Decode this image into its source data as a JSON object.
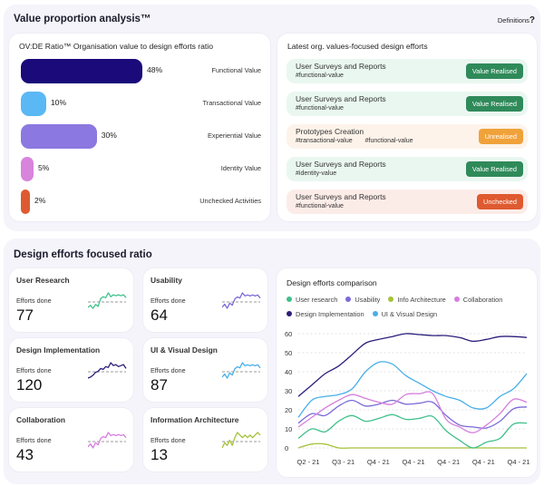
{
  "value_proportion": {
    "title": "Value proportion analysis™",
    "definitions_label": "Definitions",
    "definitions_icon": "?",
    "ovde": {
      "title": "OV:DE Ratio™  Organisation value to design efforts ratio",
      "items": [
        {
          "label": "Functional Value",
          "percent": 48,
          "percent_text": "48%",
          "color": "#1a0a7a"
        },
        {
          "label": "Transactional Value",
          "percent": 10,
          "percent_text": "10%",
          "color": "#5ab8f5"
        },
        {
          "label": "Experiential Value",
          "percent": 30,
          "percent_text": "30%",
          "color": "#8b78e0"
        },
        {
          "label": "Identity Value",
          "percent": 5,
          "percent_text": "5%",
          "color": "#d884dc"
        },
        {
          "label": "Unchecked Activities",
          "percent": 2,
          "percent_text": "2%",
          "color": "#df5a30"
        }
      ]
    },
    "latest": {
      "title": "Latest org. values-focused design efforts",
      "items": [
        {
          "title": "User Surveys and Reports",
          "tags": [
            "#functional-value"
          ],
          "status": "Value Realised",
          "status_type": "realised"
        },
        {
          "title": "User Surveys and Reports",
          "tags": [
            "#functional-value"
          ],
          "status": "Value Realised",
          "status_type": "realised"
        },
        {
          "title": "Prototypes Creation",
          "tags": [
            "#transactional-value",
            "#functional-value"
          ],
          "status": "Unrealised",
          "status_type": "unrealised"
        },
        {
          "title": "User Surveys and Reports",
          "tags": [
            "#identity-value"
          ],
          "status": "Value Realised",
          "status_type": "realised"
        },
        {
          "title": "User Surveys and Reports",
          "tags": [
            "#functional-value"
          ],
          "status": "Unchecked",
          "status_type": "unchecked"
        }
      ],
      "status_colors": {
        "realised": {
          "bg": "#eaf7f1",
          "badge": "#2f8a5a"
        },
        "unrealised": {
          "bg": "#fdf3ea",
          "badge": "#f0a23a"
        },
        "unchecked": {
          "bg": "#fcece8",
          "badge": "#df5a30"
        }
      }
    }
  },
  "design_efforts": {
    "title": "Design efforts focused ratio",
    "stats": [
      {
        "title": "User Research",
        "label": "Efforts done",
        "value": "77",
        "color": "#3fc08a",
        "trend": [
          3,
          5,
          2,
          6,
          4,
          12,
          14,
          13,
          18,
          14,
          16,
          15,
          16,
          15,
          16,
          13
        ]
      },
      {
        "title": "Usability",
        "label": "Efforts done",
        "value": "64",
        "color": "#7b6bd8",
        "trend": [
          3,
          6,
          2,
          7,
          5,
          11,
          13,
          12,
          17,
          14,
          15,
          14,
          15,
          14,
          15,
          12
        ]
      },
      {
        "title": "Design Implementation",
        "label": "Efforts done",
        "value": "120",
        "color": "#2a1f7a",
        "trend": [
          2,
          3,
          5,
          8,
          9,
          12,
          11,
          14,
          13,
          18,
          15,
          16,
          14,
          15,
          16,
          12
        ]
      },
      {
        "title": "UI & Visual Design",
        "label": "Efforts done",
        "value": "87",
        "color": "#4aaee8",
        "trend": [
          3,
          6,
          2,
          7,
          5,
          11,
          13,
          12,
          17,
          14,
          15,
          14,
          15,
          14,
          15,
          12
        ]
      },
      {
        "title": "Collaboration",
        "label": "Efforts done",
        "value": "43",
        "color": "#d57fdc",
        "trend": [
          3,
          6,
          2,
          7,
          5,
          11,
          13,
          12,
          17,
          14,
          15,
          14,
          15,
          14,
          15,
          12
        ]
      },
      {
        "title": "Information Architecture",
        "label": "Efforts done",
        "value": "13",
        "color": "#a5c23a",
        "trend": [
          6,
          8,
          7,
          9,
          7,
          10,
          12,
          11,
          10,
          11,
          10,
          11,
          10,
          11,
          12,
          11
        ]
      }
    ],
    "comparison": {
      "title": "Design efforts comparison",
      "chart_data": {
        "type": "line",
        "title": "Design efforts comparison",
        "x": [
          "Q2 - 21",
          "Q3 - 21",
          "Q4 - 21",
          "Q4 - 21",
          "Q4 - 21",
          "Q4 - 21",
          "Q4 - 21"
        ],
        "ylim": [
          0,
          60
        ],
        "yticks": [
          0,
          10,
          20,
          30,
          40,
          50,
          60
        ],
        "grid": true,
        "legend": "top",
        "series": [
          {
            "name": "User research",
            "color": "#3fc08a",
            "values": [
              5,
              10,
              8.5,
              14,
              17,
              14,
              15.5,
              17.5,
              15,
              15.5,
              16.5,
              9,
              4,
              0,
              3,
              5,
              12.5,
              13
            ]
          },
          {
            "name": "Usability",
            "color": "#7b6bd8",
            "values": [
              13,
              18,
              17,
              22,
              25,
              22,
              23,
              25,
              23,
              23.5,
              24,
              17,
              12,
              11,
              10.5,
              14,
              20.5,
              21.5
            ]
          },
          {
            "name": "Info Architecture",
            "color": "#a5c23a",
            "values": [
              0,
              2,
              2,
              0,
              0,
              0,
              0,
              0,
              0,
              0,
              0,
              0,
              0,
              0,
              0,
              0,
              0,
              0
            ]
          },
          {
            "name": "Collaboration",
            "color": "#d57fdc",
            "values": [
              11,
              16,
              21,
              25,
              28,
              26,
              24,
              23,
              28,
              28.5,
              28.5,
              15,
              11,
              8,
              12,
              18,
              25.5,
              24
            ]
          },
          {
            "name": "Design  Implementation",
            "color": "#2a1f7a",
            "values": [
              27,
              33,
              39,
              43,
              49,
              55,
              57,
              58.5,
              60,
              59.5,
              59,
              59,
              58,
              56,
              57,
              58.5,
              58.5,
              58
            ]
          },
          {
            "name": "UI & Visual Design",
            "color": "#4aaee8",
            "values": [
              16,
              25,
              27,
              28,
              31,
              40,
              45,
              44,
              38,
              34,
              30,
              27,
              25,
              21,
              21,
              27,
              31,
              39
            ]
          }
        ]
      }
    }
  }
}
